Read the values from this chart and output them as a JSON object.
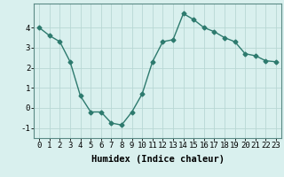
{
  "x": [
    0,
    1,
    2,
    3,
    4,
    5,
    6,
    7,
    8,
    9,
    10,
    11,
    12,
    13,
    14,
    15,
    16,
    17,
    18,
    19,
    20,
    21,
    22,
    23
  ],
  "y": [
    4.0,
    3.6,
    3.3,
    2.3,
    0.6,
    -0.2,
    -0.2,
    -0.75,
    -0.85,
    -0.2,
    0.7,
    2.3,
    3.3,
    3.4,
    4.7,
    4.4,
    4.0,
    3.8,
    3.5,
    3.3,
    2.7,
    2.6,
    2.35,
    2.3
  ],
  "xlabel": "Humidex (Indice chaleur)",
  "ylim": [
    -1.5,
    5.2
  ],
  "xlim": [
    -0.5,
    23.5
  ],
  "yticks": [
    -1,
    0,
    1,
    2,
    3,
    4
  ],
  "xticks": [
    0,
    1,
    2,
    3,
    4,
    5,
    6,
    7,
    8,
    9,
    10,
    11,
    12,
    13,
    14,
    15,
    16,
    17,
    18,
    19,
    20,
    21,
    22,
    23
  ],
  "line_color": "#2d7a6e",
  "marker": "D",
  "marker_size": 2.5,
  "bg_color": "#d9f0ee",
  "grid_color": "#b8d8d4",
  "axes_color": "#5a8a85",
  "tick_label_fontsize": 6.5,
  "xlabel_fontsize": 7.5
}
